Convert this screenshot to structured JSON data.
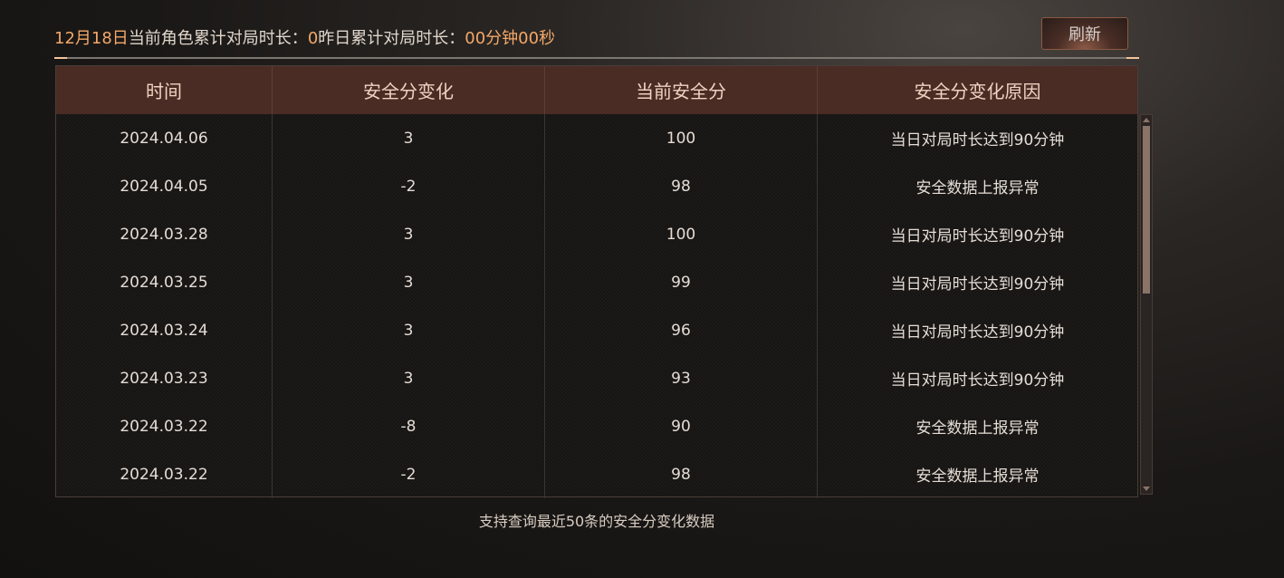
{
  "header": {
    "date": "12月18日",
    "current_label": "当前角色累计对局时长：",
    "current_value": "0",
    "yesterday_label": "昨日累计对局时长：",
    "yesterday_value": "00分钟00秒",
    "refresh_label": "刷新"
  },
  "table": {
    "columns": [
      "时间",
      "安全分变化",
      "当前安全分",
      "安全分变化原因"
    ],
    "rows": [
      [
        "2024.04.06",
        "3",
        "100",
        "当日对局时长达到90分钟"
      ],
      [
        "2024.04.05",
        "-2",
        "98",
        "安全数据上报异常"
      ],
      [
        "2024.03.28",
        "3",
        "100",
        "当日对局时长达到90分钟"
      ],
      [
        "2024.03.25",
        "3",
        "99",
        "当日对局时长达到90分钟"
      ],
      [
        "2024.03.24",
        "3",
        "96",
        "当日对局时长达到90分钟"
      ],
      [
        "2024.03.23",
        "3",
        "93",
        "当日对局时长达到90分钟"
      ],
      [
        "2024.03.22",
        "-8",
        "90",
        "安全数据上报异常"
      ],
      [
        "2024.03.22",
        "-2",
        "98",
        "安全数据上报异常"
      ]
    ]
  },
  "footer": {
    "note": "支持查询最近50条的安全分变化数据"
  },
  "colors": {
    "accent": "#f3a869",
    "header_bg": "#4a2c25"
  }
}
